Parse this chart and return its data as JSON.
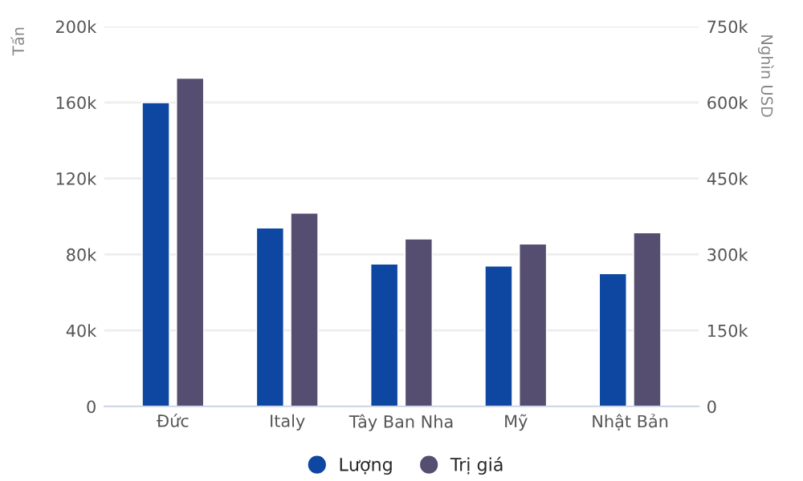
{
  "chart_data": {
    "type": "bar",
    "categories": [
      "Đức",
      "Italy",
      "Tây Ban Nha",
      "Mỹ",
      "Nhật Bản"
    ],
    "series": [
      {
        "name": "Lượng",
        "color": "#0d47a1",
        "values": [
          160000,
          94000,
          75000,
          74000,
          70000
        ]
      },
      {
        "name": "Trị giá",
        "color": "#554e70",
        "axis": "y2",
        "values": [
          648000,
          382000,
          331000,
          321000,
          343000
        ]
      }
    ],
    "ylabel": "Tấn",
    "y2label": "Nghìn USD",
    "ylim": [
      0,
      200000
    ],
    "yticks": [
      {
        "value": 0,
        "label": "0"
      },
      {
        "value": 40000,
        "label": "40k"
      },
      {
        "value": 80000,
        "label": "80k"
      },
      {
        "value": 120000,
        "label": "120k"
      },
      {
        "value": 160000,
        "label": "160k"
      },
      {
        "value": 200000,
        "label": "200k"
      }
    ],
    "y2lim": [
      0,
      750000
    ],
    "y2ticks": [
      {
        "value": 0,
        "label": "0"
      },
      {
        "value": 150000,
        "label": "150k"
      },
      {
        "value": 300000,
        "label": "300k"
      },
      {
        "value": 450000,
        "label": "450k"
      },
      {
        "value": 600000,
        "label": "600k"
      },
      {
        "value": 750000,
        "label": "750k"
      }
    ],
    "grid": "y",
    "legend": "bottom"
  }
}
